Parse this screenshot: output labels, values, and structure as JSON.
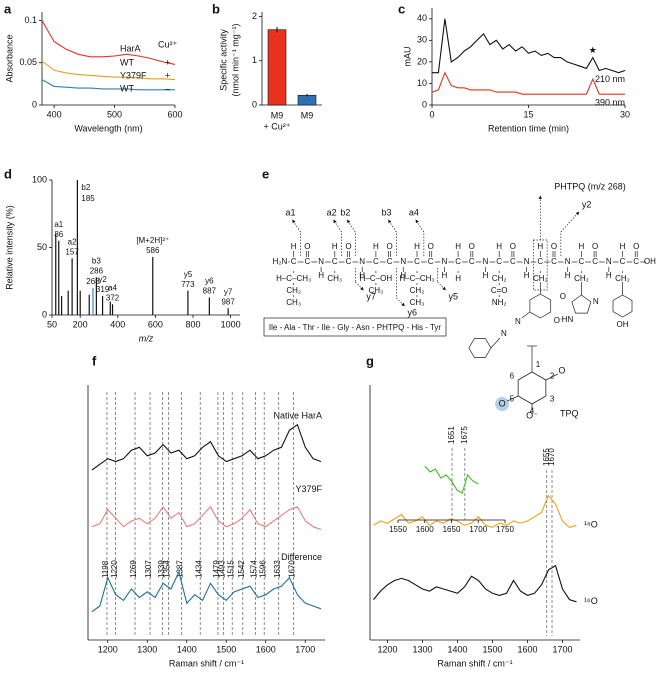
{
  "chart_data": [
    {
      "panel": "a",
      "type": "line",
      "xlabel": "Wavelength (nm)",
      "ylabel": "Absorbance",
      "x": [
        380,
        400,
        420,
        440,
        460,
        480,
        500,
        520,
        540,
        560,
        580,
        600
      ],
      "legend_header": [
        "HarA",
        "Cu²⁺"
      ],
      "series": [
        {
          "name": "WT",
          "cu": "+",
          "color": "#e8321e",
          "values": [
            0.1,
            0.075,
            0.066,
            0.06,
            0.057,
            0.057,
            0.058,
            0.06,
            0.058,
            0.055,
            0.051,
            0.048
          ]
        },
        {
          "name": "Y379F",
          "cu": "+",
          "color": "#e0a21a",
          "values": [
            0.052,
            0.041,
            0.038,
            0.036,
            0.035,
            0.034,
            0.033,
            0.033,
            0.032,
            0.031,
            0.031,
            0.03
          ]
        },
        {
          "name": "WT",
          "cu": "–",
          "color": "#2f7fc0",
          "values": [
            0.03,
            0.022,
            0.021,
            0.02,
            0.02,
            0.019,
            0.019,
            0.019,
            0.018,
            0.018,
            0.018,
            0.018
          ]
        }
      ],
      "xlim": [
        380,
        600
      ],
      "xticks": [
        400,
        500,
        600
      ],
      "ylim": [
        0,
        0.11
      ],
      "yticks": [
        0,
        0.05,
        0.1
      ]
    },
    {
      "panel": "b",
      "type": "bar",
      "ylabel": [
        "Specific activity",
        "(nmol min⁻¹ mg⁻¹)"
      ],
      "categories": [
        [
          "M9",
          "+ Cu²⁺"
        ],
        [
          "M9"
        ]
      ],
      "values": [
        1.7,
        0.22
      ],
      "errors": [
        0.06,
        0.03
      ],
      "colors": [
        "#e8321e",
        "#2f6fb5"
      ],
      "ylim": [
        0,
        2.1
      ],
      "yticks": [
        0,
        1,
        2
      ]
    },
    {
      "panel": "c",
      "type": "line",
      "xlabel": "Retention time (min)",
      "ylabel": "mAU",
      "x": [
        0,
        1,
        2,
        3,
        4,
        5,
        6,
        7,
        8,
        9,
        10,
        11,
        12,
        13,
        14,
        15,
        16,
        17,
        18,
        19,
        20,
        21,
        22,
        23,
        24,
        25,
        26,
        27,
        28,
        29,
        30
      ],
      "series": [
        {
          "name": "210 nm",
          "color": "#111111",
          "values": [
            15,
            15,
            40,
            20,
            22,
            25,
            27,
            30,
            33,
            28,
            30,
            26,
            28,
            25,
            27,
            24,
            25,
            23,
            24,
            22,
            22,
            20,
            19,
            18,
            17,
            22,
            16,
            17,
            16,
            15,
            16
          ]
        },
        {
          "name": "390 nm",
          "color": "#e8321e",
          "values": [
            6,
            7,
            15,
            9,
            8,
            8,
            7,
            7,
            7,
            7,
            6,
            6,
            6,
            6,
            5,
            5,
            5,
            5,
            5,
            5,
            5,
            5,
            5,
            5,
            5,
            12,
            5,
            5,
            5,
            5,
            5
          ]
        }
      ],
      "annotation": {
        "text": "★",
        "x": 25
      },
      "xlim": [
        0,
        30
      ],
      "xticks": [
        0,
        15,
        30
      ],
      "ylim": [
        0,
        45
      ],
      "yticks": [
        0,
        10,
        20,
        30,
        40
      ]
    },
    {
      "panel": "d",
      "type": "stem",
      "xlabel": "m/z",
      "ylabel": "Relative intensity (%)",
      "x": [
        70,
        86,
        101,
        136,
        157,
        185,
        200,
        248,
        268,
        286,
        319,
        360,
        372,
        586,
        773,
        887,
        987
      ],
      "values": [
        60,
        55,
        14,
        18,
        42,
        100,
        18,
        15,
        20,
        28,
        14,
        10,
        8,
        43,
        18,
        13,
        5
      ],
      "ions": [
        null,
        "a1",
        null,
        null,
        "a2",
        "b2",
        null,
        null,
        null,
        "b3",
        "y2",
        null,
        "a4",
        "[M+2H]²⁺",
        "y5",
        "y6",
        "y7"
      ],
      "colors": [
        "#111111",
        "#111111",
        "#111111",
        "#111111",
        "#111111",
        "#111111",
        "#111111",
        "#111111",
        "#3a86c8",
        "#111111",
        "#111111",
        "#111111",
        "#111111",
        "#111111",
        "#111111",
        "#111111",
        "#111111"
      ],
      "ion_color": "#d92b2b",
      "xlim": [
        50,
        1050
      ],
      "xticks": [
        50,
        200,
        400,
        600,
        800,
        1000
      ],
      "ylim": [
        0,
        100
      ],
      "yticks": [
        0,
        50,
        100
      ]
    },
    {
      "panel": "f",
      "type": "line",
      "xlabel": "Raman shift / cm⁻¹",
      "x": [
        1160,
        1180,
        1200,
        1220,
        1240,
        1260,
        1280,
        1300,
        1320,
        1340,
        1360,
        1380,
        1400,
        1420,
        1440,
        1460,
        1480,
        1500,
        1520,
        1540,
        1560,
        1580,
        1600,
        1620,
        1640,
        1660,
        1680,
        1700,
        1720,
        1740
      ],
      "series": [
        {
          "name": "Native HarA",
          "color": "#111111",
          "values": [
            7.0,
            7.2,
            7.4,
            7.3,
            7.4,
            7.7,
            7.8,
            7.5,
            7.6,
            7.9,
            7.6,
            7.7,
            7.4,
            7.5,
            7.8,
            8.0,
            7.5,
            7.3,
            7.4,
            7.5,
            7.7,
            7.4,
            7.5,
            7.7,
            7.8,
            8.4,
            8.6,
            7.8,
            7.4,
            7.3
          ]
        },
        {
          "name": "Y379F",
          "color": "#e88080",
          "values": [
            5.0,
            5.1,
            5.6,
            5.3,
            5.0,
            5.2,
            5.3,
            5.1,
            5.3,
            5.7,
            5.3,
            5.5,
            5.0,
            5.1,
            5.4,
            5.7,
            5.2,
            5.0,
            5.1,
            5.3,
            5.6,
            5.1,
            5.0,
            5.2,
            5.4,
            5.6,
            5.7,
            5.2,
            5.0,
            4.9
          ]
        },
        {
          "name": "Difference",
          "color": "#1f6e9a",
          "values": [
            2.0,
            2.2,
            3.2,
            2.6,
            2.4,
            2.8,
            2.5,
            2.7,
            2.5,
            3.0,
            2.8,
            3.4,
            2.3,
            2.6,
            2.4,
            3.0,
            2.6,
            2.4,
            2.7,
            2.8,
            2.9,
            2.5,
            2.6,
            2.8,
            2.9,
            3.2,
            2.6,
            2.3,
            2.2,
            2.1
          ]
        }
      ],
      "peaks": [
        1198,
        1220,
        1269,
        1307,
        1339,
        1354,
        1387,
        1434,
        1479,
        1493,
        1515,
        1542,
        1574,
        1596,
        1633,
        1670
      ],
      "xlim": [
        1150,
        1750
      ],
      "xticks": [
        1200,
        1300,
        1400,
        1500,
        1600,
        1700
      ],
      "ylim": [
        1,
        10
      ]
    },
    {
      "panel": "g",
      "type": "line",
      "xlabel": "Raman shift / cm⁻¹",
      "x": [
        1160,
        1180,
        1200,
        1220,
        1240,
        1260,
        1280,
        1300,
        1320,
        1340,
        1360,
        1380,
        1400,
        1420,
        1440,
        1460,
        1480,
        1500,
        1520,
        1540,
        1560,
        1580,
        1600,
        1620,
        1640,
        1660,
        1680,
        1700,
        1720,
        1740
      ],
      "series": [
        {
          "name": "¹⁸O",
          "color": "#e8a317",
          "values": [
            5.4,
            5.6,
            5.5,
            5.7,
            5.9,
            5.5,
            5.6,
            5.8,
            5.4,
            5.6,
            5.5,
            5.7,
            5.6,
            5.4,
            5.5,
            5.8,
            5.4,
            5.3,
            5.5,
            5.4,
            5.6,
            5.5,
            5.6,
            5.8,
            6.0,
            6.8,
            6.4,
            5.6,
            5.3,
            5.4
          ]
        },
        {
          "name": "¹⁶O",
          "color": "#111111",
          "values": [
            1.9,
            2.3,
            2.6,
            2.8,
            2.9,
            2.8,
            2.6,
            2.4,
            2.3,
            2.5,
            2.4,
            2.3,
            2.2,
            2.5,
            3.0,
            2.8,
            2.4,
            2.2,
            2.1,
            2.2,
            2.8,
            2.3,
            2.1,
            2.2,
            2.6,
            3.3,
            3.5,
            2.4,
            1.9,
            1.8
          ]
        }
      ],
      "peaks": [
        1655,
        1670
      ],
      "xlim": [
        1150,
        1750
      ],
      "xticks": [
        1200,
        1300,
        1400,
        1500,
        1600,
        1700
      ],
      "ylim": [
        0,
        12
      ],
      "inset": {
        "x": [
          1600,
          1610,
          1620,
          1630,
          1640,
          1650,
          1660,
          1670,
          1680,
          1690,
          1700
        ],
        "values": [
          8.4,
          8.2,
          8.3,
          8.0,
          8.1,
          7.9,
          7.6,
          7.5,
          8.1,
          7.9,
          7.8
        ],
        "color": "#3cc21e",
        "peaks": [
          1651,
          1675
        ],
        "xlim": [
          1550,
          1750
        ],
        "xticks": [
          1550,
          1600,
          1650,
          1700,
          1750
        ],
        "ylim": [
          7,
          9
        ]
      },
      "structure": {
        "name": "TPQ",
        "numbers": [
          "1",
          "2",
          "3",
          "4",
          "5",
          "6"
        ],
        "oxygens": [
          "O",
          "O",
          "O⁻"
        ],
        "color": "#e0608a"
      }
    }
  ],
  "diagram": {
    "panel": "e",
    "atoms": {
      "n_term": "H₂N",
      "c_term": "OH",
      "N": "N",
      "C": "C",
      "H": "H",
      "O": "O"
    },
    "sidechains": [
      [
        "H–C–CH₃",
        "CH₂",
        "CH₃"
      ],
      [
        "CH₃"
      ],
      [
        "H–C–OH",
        "CH₃"
      ],
      [
        "H–C–CH₃",
        "CH₂",
        "CH₃"
      ],
      [
        "H"
      ],
      [
        "CH₂",
        "C=O",
        "NH₂"
      ],
      [
        "CH₂"
      ],
      [
        "CH₂"
      ],
      [
        "CH₂"
      ]
    ],
    "rings": {
      "phtpq": [
        "O",
        "O⁻",
        "N",
        "N"
      ],
      "his": [
        "N",
        "HN"
      ],
      "tyr": [
        "OH"
      ]
    },
    "fragments": [
      "a1",
      "a2",
      "b2",
      "b3",
      "a4",
      "y2",
      "y7",
      "y6",
      "y5"
    ],
    "fragment_color": "#d92b2b",
    "modified": "PHTPQ (m/z 268)",
    "modified_color": "#2b3fd9",
    "sequence": "Ile - Ala - Thr - Ile - Gly - Asn - PHTPQ - His - Tyr"
  }
}
